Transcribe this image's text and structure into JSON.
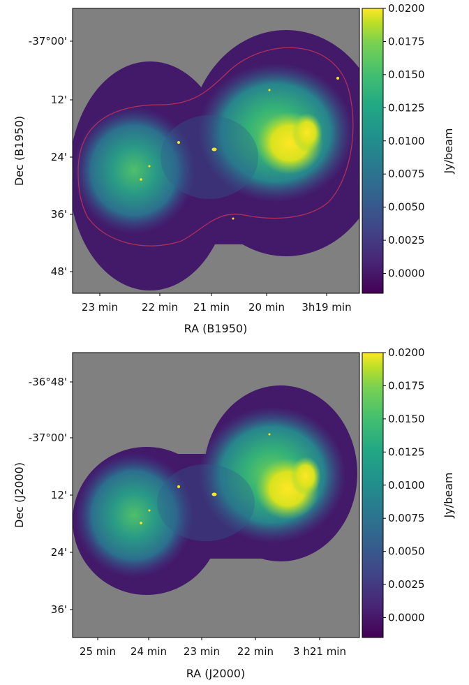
{
  "chart_data": [
    {
      "type": "heatmap",
      "title": "",
      "xlabel": "RA (B1950)",
      "ylabel": "Dec (B1950)",
      "x_ticks": [
        "23 min",
        "22 min",
        "21 min",
        "20 min",
        "3h19 min"
      ],
      "y_ticks": [
        "-37°00'",
        "12'",
        "24'",
        "36'",
        "48'"
      ],
      "colorbar": {
        "label": "Jy/beam",
        "colormap": "viridis",
        "range": [
          -0.0015,
          0.02
        ],
        "ticks": [
          "0.0200",
          "0.0175",
          "0.0150",
          "0.0125",
          "0.0100",
          "0.0075",
          "0.0050",
          "0.0025",
          "0.0000"
        ]
      },
      "background_color": "#808080",
      "contour_color": "#b0305a"
    },
    {
      "type": "heatmap",
      "title": "",
      "xlabel": "RA (J2000)",
      "ylabel": "Dec (J2000)",
      "x_ticks": [
        "25 min",
        "24 min",
        "23 min",
        "22 min",
        "3 h21 min"
      ],
      "y_ticks": [
        "-36°48'",
        "-37°00'",
        "12'",
        "24'",
        "36'"
      ],
      "colorbar": {
        "label": "Jy/beam",
        "colormap": "viridis",
        "range": [
          -0.0015,
          0.02
        ],
        "ticks": [
          "0.0200",
          "0.0175",
          "0.0150",
          "0.0125",
          "0.0100",
          "0.0075",
          "0.0050",
          "0.0025",
          "0.0000"
        ]
      },
      "background_color": "#808080"
    }
  ]
}
